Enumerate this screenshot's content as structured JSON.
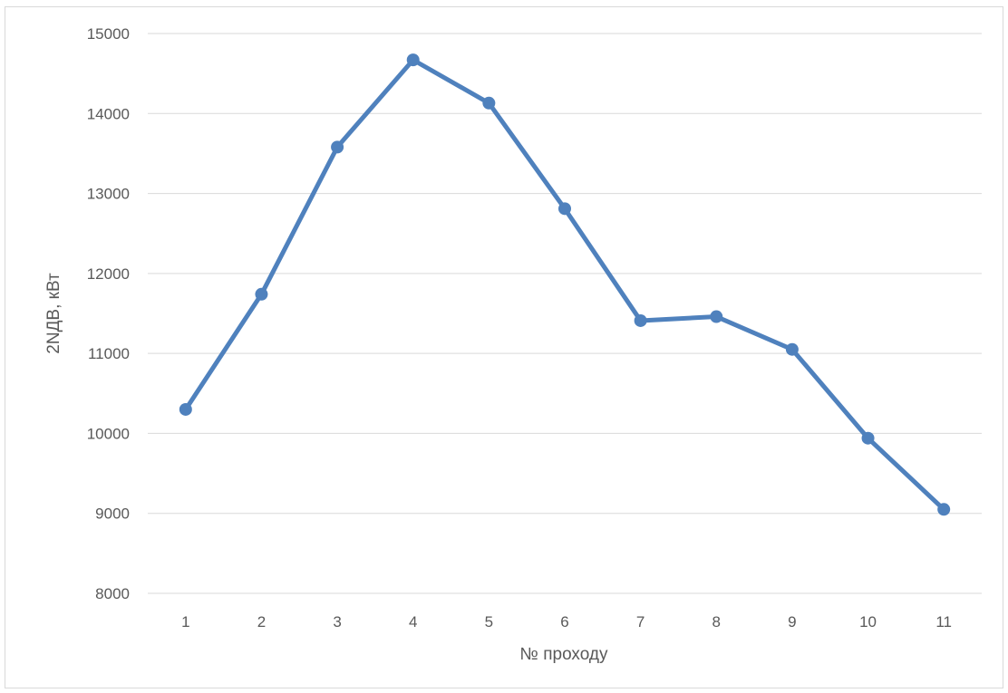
{
  "chart_data": {
    "type": "line",
    "title": "",
    "xlabel": "№ проходу",
    "ylabel": "2NДВ, кВт",
    "x": [
      "1",
      "2",
      "3",
      "4",
      "5",
      "6",
      "7",
      "8",
      "9",
      "10",
      "11"
    ],
    "series": [
      {
        "values": [
          10300,
          11740,
          13580,
          14670,
          14130,
          12810,
          11410,
          11460,
          11050,
          9940,
          9050
        ]
      }
    ],
    "ylim": [
      8000,
      15000
    ],
    "yticks": [
      "8000",
      "9000",
      "10000",
      "11000",
      "12000",
      "13000",
      "14000",
      "15000"
    ],
    "grid": true,
    "legend": "none",
    "colors": {
      "line": "#4f81bd",
      "marker": "#4f81bd",
      "grid": "#d9d9d9",
      "text": "#595959"
    }
  }
}
